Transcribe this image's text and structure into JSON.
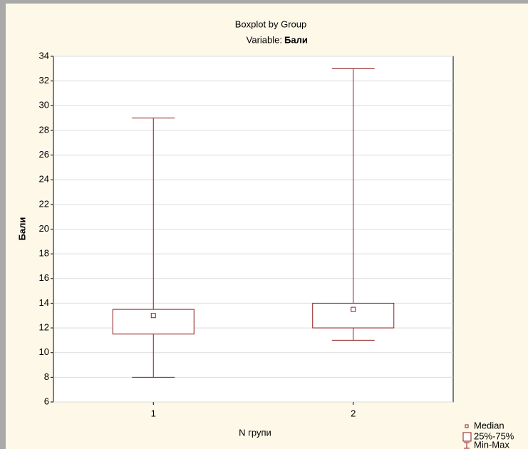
{
  "chart_data": {
    "type": "box",
    "title": "Boxplot by Group",
    "subtitle": "Variable:",
    "variable": "Бали",
    "y_label": "Бали",
    "x_label": "N групи",
    "categories": [
      "1",
      "2"
    ],
    "boxes": [
      {
        "min": 8,
        "q1": 11.5,
        "median": 13,
        "q3": 13.5,
        "max": 29
      },
      {
        "min": 11,
        "q1": 12,
        "median": 13.5,
        "q3": 14,
        "max": 33
      }
    ],
    "color": "#8b1a1a",
    "ylim": [
      6,
      34
    ],
    "yticks": [
      6,
      8,
      10,
      12,
      14,
      16,
      18,
      20,
      22,
      24,
      26,
      28,
      30,
      32,
      34
    ],
    "grid": true,
    "legend": [
      "Median",
      "25%-75%",
      "Min-Max"
    ],
    "legend_position": "bottom-right"
  }
}
